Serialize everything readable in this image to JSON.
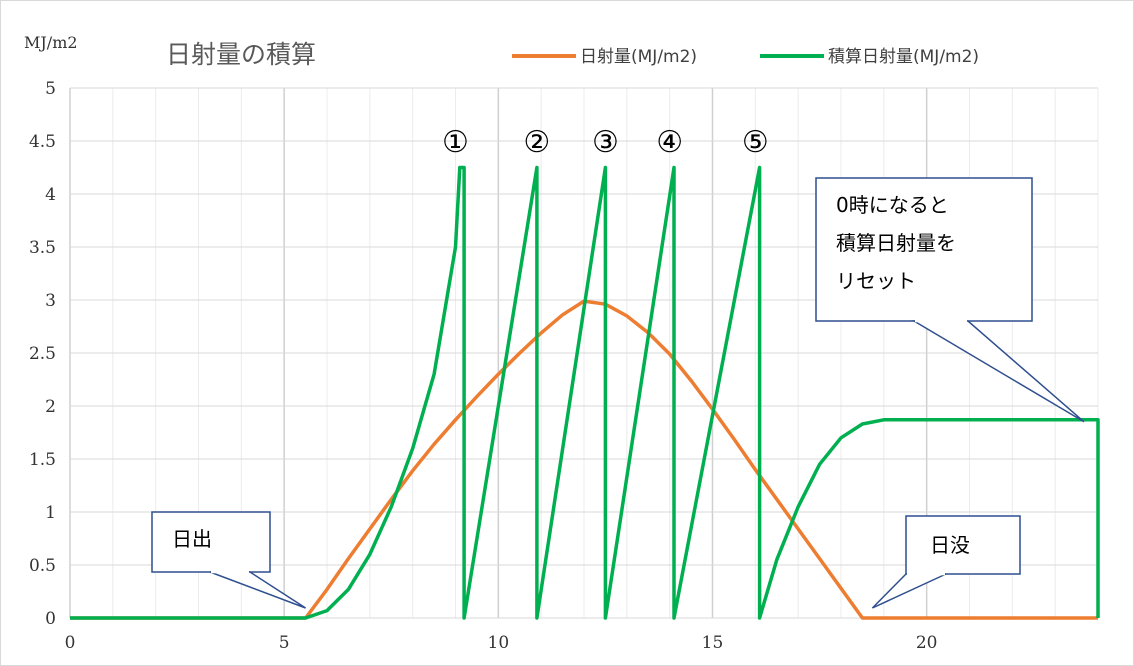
{
  "chart_data": {
    "type": "line",
    "title": "日射量の積算",
    "ylabel": "MJ/m2",
    "xlabel": "",
    "xlim": [
      0,
      24
    ],
    "ylim": [
      0,
      5
    ],
    "x_ticks": [
      "0",
      "5",
      "10",
      "15",
      "20"
    ],
    "y_ticks": [
      "0",
      "0.5",
      "1",
      "1.5",
      "2",
      "2.5",
      "3",
      "3.5",
      "4",
      "4.5",
      "5"
    ],
    "grid": true,
    "legend_position": "top-right",
    "series": [
      {
        "name": "日射量(MJ/m2)",
        "color": "#ED7D31",
        "points": [
          [
            0,
            0
          ],
          [
            5.5,
            0
          ],
          [
            6,
            0.27
          ],
          [
            6.5,
            0.56
          ],
          [
            7,
            0.84
          ],
          [
            7.5,
            1.12
          ],
          [
            8,
            1.39
          ],
          [
            8.5,
            1.64
          ],
          [
            9,
            1.87
          ],
          [
            9.5,
            2.09
          ],
          [
            10,
            2.3
          ],
          [
            10.5,
            2.5
          ],
          [
            11,
            2.69
          ],
          [
            11.5,
            2.86
          ],
          [
            12,
            2.99
          ],
          [
            12.5,
            2.96
          ],
          [
            13,
            2.85
          ],
          [
            13.5,
            2.69
          ],
          [
            14,
            2.49
          ],
          [
            14.5,
            2.24
          ],
          [
            15,
            1.97
          ],
          [
            15.5,
            1.69
          ],
          [
            16,
            1.4
          ],
          [
            16.5,
            1.12
          ],
          [
            17,
            0.84
          ],
          [
            17.5,
            0.56
          ],
          [
            18,
            0.28
          ],
          [
            18.5,
            0
          ],
          [
            24,
            0
          ]
        ]
      },
      {
        "name": "積算日射量(MJ/m2)",
        "color": "#00B050",
        "points": [
          [
            0,
            0
          ],
          [
            5.5,
            0
          ],
          [
            6,
            0.07
          ],
          [
            6.5,
            0.27
          ],
          [
            7,
            0.6
          ],
          [
            7.5,
            1.05
          ],
          [
            8,
            1.6
          ],
          [
            8.5,
            2.3
          ],
          [
            9,
            3.5
          ],
          [
            9.1,
            4.25
          ],
          [
            9.2,
            4.25
          ],
          [
            9.2,
            0
          ],
          [
            10.9,
            4.25
          ],
          [
            10.9,
            0
          ],
          [
            12.5,
            4.25
          ],
          [
            12.5,
            0
          ],
          [
            14.1,
            4.25
          ],
          [
            14.1,
            0
          ],
          [
            16.1,
            4.25
          ],
          [
            16.1,
            0
          ],
          [
            16.5,
            0.55
          ],
          [
            17,
            1.05
          ],
          [
            17.5,
            1.45
          ],
          [
            18,
            1.7
          ],
          [
            18.5,
            1.83
          ],
          [
            19,
            1.87
          ],
          [
            24,
            1.87
          ],
          [
            24,
            0
          ]
        ]
      }
    ],
    "annotations": {
      "markers": [
        {
          "label": "①",
          "x": 9.0
        },
        {
          "label": "②",
          "x": 10.9
        },
        {
          "label": "③",
          "x": 12.5
        },
        {
          "label": "④",
          "x": 14.0
        },
        {
          "label": "⑤",
          "x": 16.0
        }
      ],
      "callouts": [
        {
          "name": "sunrise",
          "lines": [
            "日出"
          ],
          "points_to": [
            5.5,
            0
          ]
        },
        {
          "name": "sunset",
          "lines": [
            "日没"
          ],
          "points_to": [
            18.5,
            0
          ]
        },
        {
          "name": "reset",
          "lines": [
            "0時になると",
            "積算日射量を",
            "リセット"
          ],
          "points_to": [
            24,
            1.87
          ]
        }
      ]
    }
  }
}
